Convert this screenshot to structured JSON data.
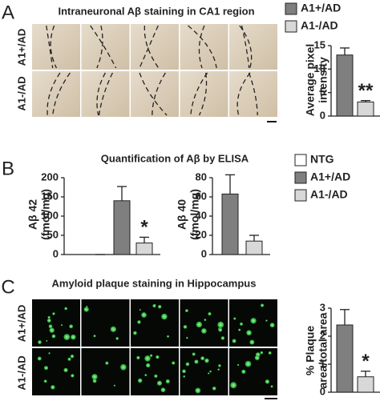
{
  "chart_data": [
    {
      "type": "bar",
      "panel": "A",
      "title": "Intraneuronal Aβ staining in CA1 region",
      "image_rows": [
        "A1+/AD",
        "A1-/AD"
      ],
      "categories": [
        "A1+/AD",
        "A1-/AD"
      ],
      "values": [
        13,
        3
      ],
      "errors": [
        1.5,
        0.3
      ],
      "colors": [
        "#7f7f7f",
        "#d8d8d8"
      ],
      "ylabel": [
        "Average pixel",
        "intensity"
      ],
      "ylim": [
        0,
        15
      ],
      "yticks": [
        0,
        5,
        10,
        15
      ],
      "annotation": "**",
      "legend": true
    },
    {
      "type": "bar",
      "panel": "B",
      "title": "Quantification of Aβ by ELISA",
      "categories": [
        "NTG",
        "A1+/AD",
        "A1-/AD"
      ],
      "values": [
        0,
        140,
        30
      ],
      "errors": [
        0,
        37,
        15
      ],
      "colors": [
        "#ffffff",
        "#7f7f7f",
        "#d8d8d8"
      ],
      "ylabel": [
        "Aβ 42",
        "(fmol/mg)"
      ],
      "ylim": [
        0,
        200
      ],
      "yticks": [
        0,
        50,
        100,
        150,
        200
      ],
      "annotation": "*",
      "legend": true
    },
    {
      "type": "bar",
      "values": [
        63,
        14
      ],
      "errors": [
        20,
        6
      ],
      "colors": [
        "#7f7f7f",
        "#d8d8d8"
      ],
      "ylabel": [
        "Aβ 40",
        "(fmol/mg)"
      ],
      "ylim": [
        0,
        80
      ],
      "yticks": [
        0,
        20,
        40,
        60,
        80
      ]
    },
    {
      "type": "bar",
      "panel": "C",
      "title": "Amyloid plaque staining in Hippocampus",
      "image_rows": [
        "A1+/AD",
        "A1-/AD"
      ],
      "values": [
        2.4,
        0.55
      ],
      "errors": [
        0.55,
        0.2
      ],
      "colors": [
        "#7f7f7f",
        "#d8d8d8"
      ],
      "ylabel": [
        "% Plaque",
        "area/total area"
      ],
      "ylim": [
        0,
        3
      ],
      "yticks": [
        0,
        1,
        2,
        3
      ],
      "annotation": "*"
    }
  ]
}
